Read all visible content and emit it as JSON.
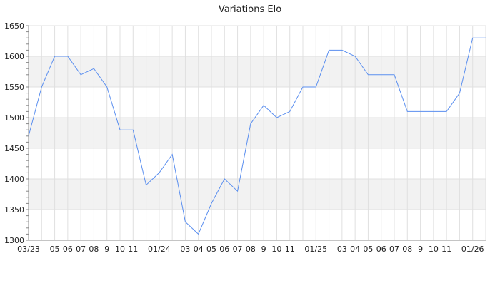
{
  "chart_data": {
    "type": "line",
    "title": "Variations Elo",
    "xlabel": "",
    "ylabel": "",
    "ylim": [
      1300,
      1650
    ],
    "yticks": [
      1300,
      1350,
      1400,
      1450,
      1500,
      1550,
      1600,
      1650
    ],
    "grid": true,
    "legend": "none",
    "line_color": "#5b8fef",
    "band_color": "#f2f2f2",
    "x_tick_labels": [
      "03/23",
      "",
      "05",
      "06",
      "07",
      "08",
      "9",
      "10",
      "11",
      "",
      "01/24",
      "",
      "03",
      "04",
      "05",
      "06",
      "07",
      "08",
      "9",
      "10",
      "11",
      "",
      "01/25",
      "",
      "03",
      "04",
      "05",
      "06",
      "07",
      "08",
      "9",
      "10",
      "11",
      "",
      "01/26",
      ""
    ],
    "values": [
      1470,
      1550,
      1600,
      1600,
      1570,
      1580,
      1550,
      1480,
      1480,
      1390,
      1410,
      1440,
      1330,
      1310,
      1360,
      1400,
      1380,
      1490,
      1520,
      1500,
      1510,
      1550,
      1550,
      1610,
      1610,
      1600,
      1570,
      1570,
      1570,
      1510,
      1510,
      1510,
      1510,
      1540,
      1630,
      1630
    ]
  }
}
